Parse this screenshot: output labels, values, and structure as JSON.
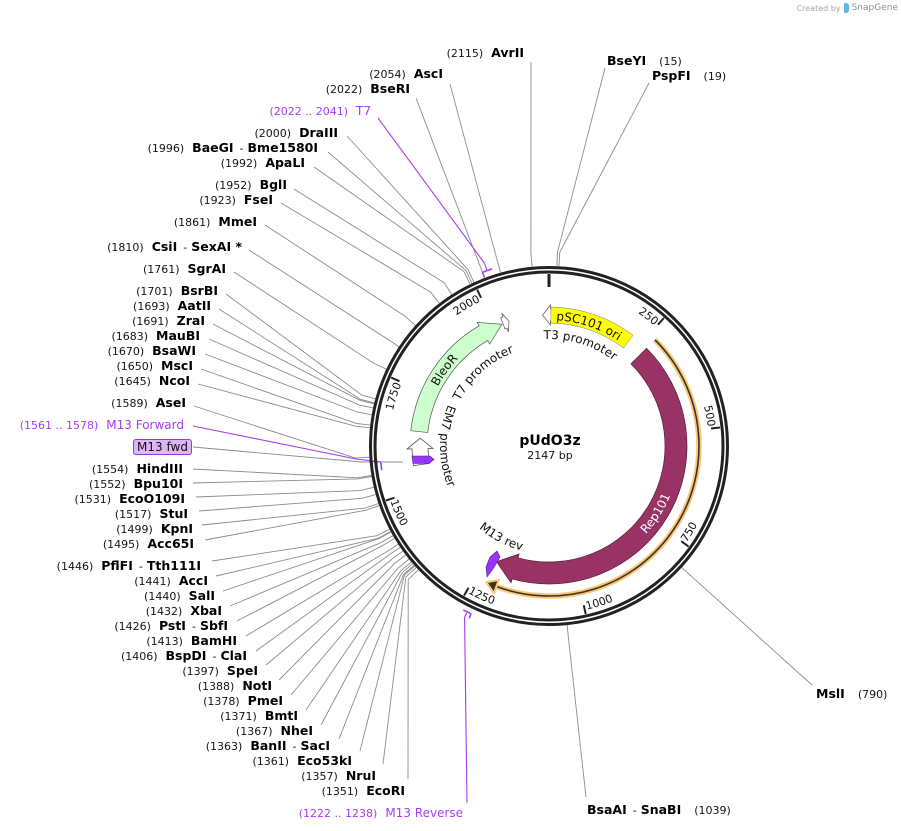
{
  "watermark": {
    "prefix": "Created by",
    "brand": "SnapGene"
  },
  "map": {
    "name": "pUdO3z",
    "size_label": "2147 bp",
    "total_bp": 2147
  },
  "ticks": [
    {
      "bp": 250,
      "label": "250"
    },
    {
      "bp": 500,
      "label": "500"
    },
    {
      "bp": 750,
      "label": "750"
    },
    {
      "bp": 1000,
      "label": "1000"
    },
    {
      "bp": 1250,
      "label": "1250"
    },
    {
      "bp": 1500,
      "label": "1500"
    },
    {
      "bp": 1750,
      "label": "1750"
    },
    {
      "bp": 2000,
      "label": "2000"
    }
  ],
  "features": {
    "pSC101_ori": {
      "label": "pSC101 ori",
      "color": "#ffff00"
    },
    "T3_promoter": {
      "label": "T3 promoter",
      "color": "#ffffff"
    },
    "Rep101": {
      "label": "Rep101",
      "color": "#993366"
    },
    "Rep101_orf": {
      "color": "#f6c77c"
    },
    "BleoR": {
      "label": "BleoR",
      "color": "#ccffcc"
    },
    "T7_promoter": {
      "label": "T7 promoter",
      "color": "#ffffff"
    },
    "EM7_promoter": {
      "label": "EM7 promoter",
      "color": "#ffffff"
    },
    "M13_rev": {
      "label": "M13 rev",
      "color": "#9933ff"
    },
    "M13_fwd": {
      "label": "M13 fwd",
      "color": "#9933ff"
    }
  },
  "primers": [
    {
      "range": "(2022 .. 2041)",
      "name": "T7"
    },
    {
      "range": "(1561 .. 1578)",
      "name": "M13 Forward"
    },
    {
      "range": "(1222 .. 1238)",
      "name": "M13 Reverse"
    }
  ],
  "sites": [
    {
      "pos": "(2115)",
      "name": "AvrII"
    },
    {
      "pos": "(2054)",
      "name": "AscI"
    },
    {
      "pos": "(2022)",
      "name": "BseRI"
    },
    {
      "pos": "(2000)",
      "name": "DraIII"
    },
    {
      "pos": "(1996)",
      "name": "BaeGI",
      "sep": "-",
      "name2": "Bme1580I"
    },
    {
      "pos": "(1992)",
      "name": "ApaLI"
    },
    {
      "pos": "(1952)",
      "name": "BglI"
    },
    {
      "pos": "(1923)",
      "name": "FseI"
    },
    {
      "pos": "(1861)",
      "name": "MmeI"
    },
    {
      "pos": "(1810)",
      "name": "CsiI",
      "sep": "-",
      "name2": "SexAI *"
    },
    {
      "pos": "(1761)",
      "name": "SgrAI"
    },
    {
      "pos": "(1701)",
      "name": "BsrBI"
    },
    {
      "pos": "(1693)",
      "name": "AatII"
    },
    {
      "pos": "(1691)",
      "name": "ZraI"
    },
    {
      "pos": "(1683)",
      "name": "MauBI"
    },
    {
      "pos": "(1670)",
      "name": "BsaWI"
    },
    {
      "pos": "(1650)",
      "name": "MscI"
    },
    {
      "pos": "(1645)",
      "name": "NcoI"
    },
    {
      "pos": "(1589)",
      "name": "AseI"
    },
    {
      "pos": "(1554)",
      "name": "HindIII"
    },
    {
      "pos": "(1552)",
      "name": "Bpu10I"
    },
    {
      "pos": "(1531)",
      "name": "EcoO109I"
    },
    {
      "pos": "(1517)",
      "name": "StuI"
    },
    {
      "pos": "(1499)",
      "name": "KpnI"
    },
    {
      "pos": "(1495)",
      "name": "Acc65I"
    },
    {
      "pos": "(1446)",
      "name": "PflFI",
      "sep": "-",
      "name2": "Tth111I"
    },
    {
      "pos": "(1441)",
      "name": "AccI"
    },
    {
      "pos": "(1440)",
      "name": "SalI"
    },
    {
      "pos": "(1432)",
      "name": "XbaI"
    },
    {
      "pos": "(1426)",
      "name": "PstI",
      "sep": "-",
      "name2": "SbfI"
    },
    {
      "pos": "(1413)",
      "name": "BamHI"
    },
    {
      "pos": "(1406)",
      "name": "BspDI",
      "sep": "-",
      "name2": "ClaI"
    },
    {
      "pos": "(1397)",
      "name": "SpeI"
    },
    {
      "pos": "(1388)",
      "name": "NotI"
    },
    {
      "pos": "(1378)",
      "name": "PmeI"
    },
    {
      "pos": "(1371)",
      "name": "BmtI"
    },
    {
      "pos": "(1367)",
      "name": "NheI"
    },
    {
      "pos": "(1363)",
      "name": "BanII",
      "sep": "-",
      "name2": "SacI"
    },
    {
      "pos": "(1361)",
      "name": "Eco53kI"
    },
    {
      "pos": "(1357)",
      "name": "NruI"
    },
    {
      "pos": "(1351)",
      "name": "EcoRI"
    },
    {
      "pos": "(15)",
      "name": "BseYI"
    },
    {
      "pos": "(19)",
      "name": "PspFI"
    },
    {
      "pos": "(790)",
      "name": "MslI"
    },
    {
      "pos": "(1039)",
      "name": "BsaAI",
      "sep": "-",
      "name2": "SnaBI"
    }
  ]
}
